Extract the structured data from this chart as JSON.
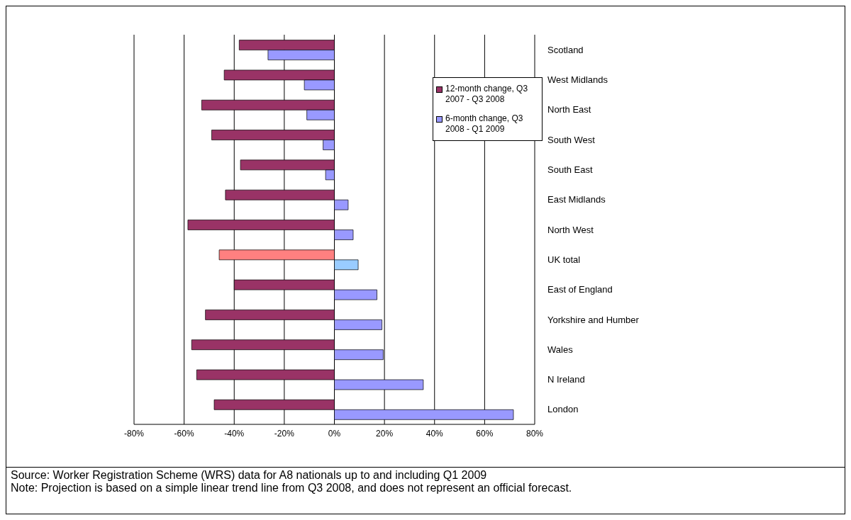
{
  "chart_data": {
    "type": "bar",
    "orientation": "horizontal",
    "categories": [
      "Scotland",
      "West Midlands",
      "North East",
      "South West",
      "South East",
      "East Midlands",
      "North West",
      "UK total",
      "East of England",
      "Yorkshire and Humber",
      "Wales",
      "N Ireland",
      "London"
    ],
    "series": [
      {
        "name": "12-month change, Q3 2007 - Q3 2008",
        "colors": [
          "#993366",
          "#993366",
          "#993366",
          "#993366",
          "#993366",
          "#993366",
          "#993366",
          "#ff8080",
          "#993366",
          "#993366",
          "#993366",
          "#993366",
          "#993366"
        ],
        "values": [
          -38,
          -44,
          -53,
          -49,
          -37.5,
          -43.5,
          -58.5,
          -46,
          -40,
          -51.5,
          -57,
          -55,
          -48
        ]
      },
      {
        "name": "6-month change, Q3 2008 - Q1 2009",
        "colors": [
          "#9999ff",
          "#9999ff",
          "#9999ff",
          "#9999ff",
          "#9999ff",
          "#9999ff",
          "#9999ff",
          "#99ccff",
          "#9999ff",
          "#9999ff",
          "#9999ff",
          "#9999ff",
          "#9999ff"
        ],
        "values": [
          -26.5,
          -12,
          -11,
          -4.5,
          -3.5,
          5.5,
          7.5,
          9.5,
          17,
          19,
          19.5,
          35.5,
          71.5
        ]
      }
    ],
    "xlim": [
      -80,
      80
    ],
    "xticks": [
      {
        "value": -80,
        "label": "-80%"
      },
      {
        "value": -60,
        "label": "-60%"
      },
      {
        "value": -40,
        "label": "-40%"
      },
      {
        "value": -20,
        "label": "-20%"
      },
      {
        "value": 0,
        "label": "0%"
      },
      {
        "value": 20,
        "label": "20%"
      },
      {
        "value": 40,
        "label": "40%"
      },
      {
        "value": 60,
        "label": "60%"
      },
      {
        "value": 80,
        "label": "80%"
      }
    ],
    "grid": "x",
    "legend": "top right",
    "annotations": [
      "Source: Worker Registration Scheme (WRS) data for A8 nationals up to and including Q1 2009",
      "Note: Projection is based on a simple linear trend line from Q3 2008, and does not represent an official forecast."
    ]
  }
}
